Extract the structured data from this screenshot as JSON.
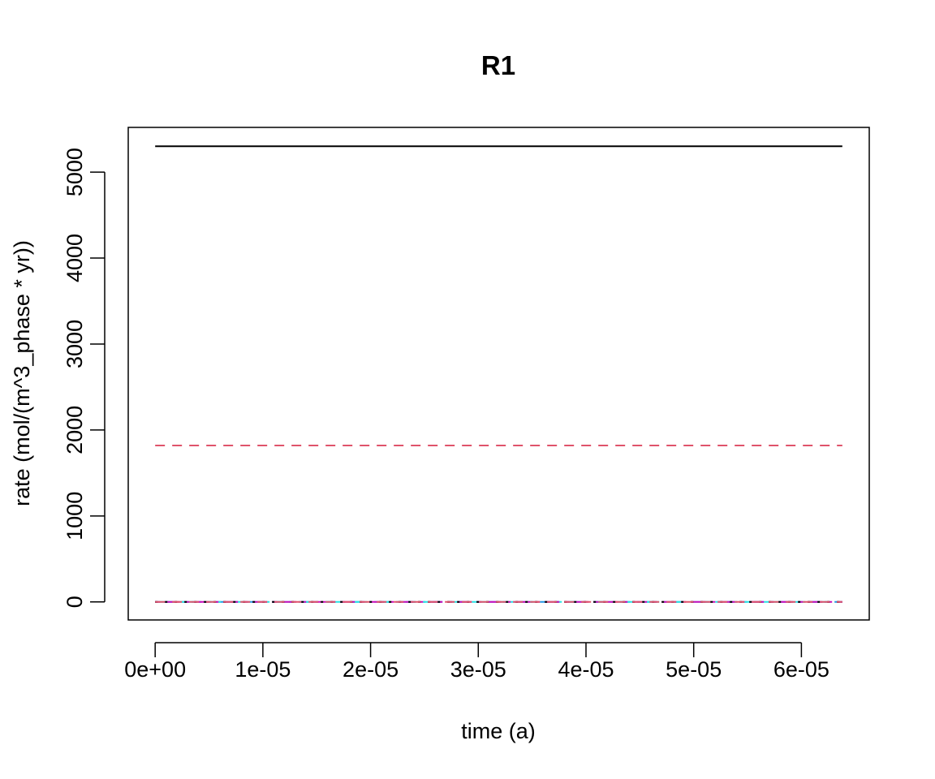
{
  "chart_data": {
    "type": "line",
    "title": "R1",
    "xlabel": "time (a)",
    "ylabel": "rate (mol/(m^3_phase * yr))",
    "xlim": [
      -2.5e-06,
      6.63e-05
    ],
    "ylim": [
      -210,
      5520
    ],
    "x_ticks": [
      0,
      1e-05,
      2e-05,
      3e-05,
      4e-05,
      5e-05,
      6e-05
    ],
    "x_tick_labels": [
      "0e+00",
      "1e-05",
      "2e-05",
      "3e-05",
      "4e-05",
      "5e-05",
      "6e-05"
    ],
    "y_ticks": [
      0,
      1000,
      2000,
      3000,
      4000,
      5000
    ],
    "y_tick_labels": [
      "0",
      "1000",
      "2000",
      "3000",
      "4000",
      "5000"
    ],
    "x": [
      0,
      6.38e-05
    ],
    "series": [
      {
        "values": [
          5300,
          5300
        ],
        "color": "#000000",
        "dash": "solid"
      },
      {
        "values": [
          1820,
          1820
        ],
        "color": "#DF536B",
        "dash": "dashed"
      },
      {
        "values": [
          0,
          0
        ],
        "color": "#61D04F",
        "dash": "dotted"
      },
      {
        "values": [
          0,
          0
        ],
        "color": "#2297E6",
        "dash": "dotdash"
      },
      {
        "values": [
          0,
          0
        ],
        "color": "#28E2E5",
        "dash": "longdash"
      },
      {
        "values": [
          0,
          0
        ],
        "color": "#CD0BBC",
        "dash": "twodash"
      },
      {
        "values": [
          0,
          0
        ],
        "color": "#000000",
        "dash": "dotted"
      },
      {
        "values": [
          0,
          0
        ],
        "color": "#DF536B",
        "dash": "dashed"
      }
    ],
    "grid": false,
    "legend": "none"
  }
}
